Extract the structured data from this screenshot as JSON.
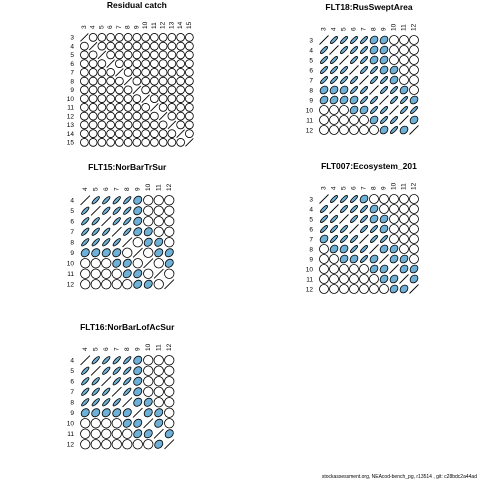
{
  "footer": "stockassessment.org, NEAcod-bench_pg, r13514 , git: c28bdc2a44ad",
  "colors": {
    "fill": "#6fb0d6",
    "stroke": "#000000"
  },
  "chart_data": [
    {
      "type": "correlation-ellipse-matrix",
      "title": "Residual catch",
      "ages": [
        3,
        4,
        5,
        6,
        7,
        8,
        9,
        10,
        11,
        12,
        13,
        14,
        15
      ],
      "strong": [],
      "weak": []
    },
    {
      "type": "correlation-ellipse-matrix",
      "title": "FLT18:RusSweptArea",
      "ages": [
        3,
        4,
        5,
        6,
        7,
        8,
        9,
        10,
        11,
        12
      ],
      "strong": [
        [
          3,
          4
        ],
        [
          3,
          5
        ],
        [
          3,
          6
        ],
        [
          3,
          7
        ],
        [
          4,
          5
        ],
        [
          4,
          6
        ],
        [
          4,
          7
        ],
        [
          5,
          6
        ],
        [
          5,
          7
        ],
        [
          6,
          7
        ],
        [
          6,
          8
        ],
        [
          7,
          8
        ],
        [
          7,
          9
        ],
        [
          8,
          9
        ],
        [
          8,
          10
        ],
        [
          9,
          10
        ],
        [
          9,
          11
        ],
        [
          10,
          11
        ],
        [
          10,
          12
        ]
      ],
      "weak": [
        [
          3,
          8
        ],
        [
          3,
          9
        ],
        [
          4,
          8
        ],
        [
          4,
          9
        ],
        [
          5,
          8
        ],
        [
          5,
          9
        ],
        [
          6,
          9
        ],
        [
          6,
          10
        ],
        [
          7,
          10
        ],
        [
          8,
          11
        ],
        [
          9,
          12
        ],
        [
          11,
          12
        ]
      ]
    },
    {
      "type": "correlation-ellipse-matrix",
      "title": "FLT15:NorBarTrSur",
      "ages": [
        4,
        5,
        6,
        7,
        8,
        9,
        10,
        11,
        12
      ],
      "strong": [
        [
          4,
          5
        ],
        [
          4,
          6
        ],
        [
          4,
          7
        ],
        [
          4,
          8
        ],
        [
          5,
          6
        ],
        [
          5,
          7
        ],
        [
          5,
          8
        ],
        [
          6,
          7
        ],
        [
          6,
          8
        ],
        [
          7,
          8
        ]
      ],
      "weak": [
        [
          4,
          9
        ],
        [
          5,
          9
        ],
        [
          6,
          9
        ],
        [
          7,
          9
        ],
        [
          7,
          10
        ],
        [
          8,
          10
        ],
        [
          8,
          11
        ],
        [
          9,
          11
        ],
        [
          9,
          12
        ],
        [
          10,
          12
        ]
      ]
    },
    {
      "type": "correlation-ellipse-matrix",
      "title": "FLT007:Ecosystem_201",
      "ages": [
        3,
        4,
        5,
        6,
        7,
        8,
        9,
        10,
        11,
        12
      ],
      "strong": [
        [
          3,
          4
        ],
        [
          3,
          5
        ],
        [
          3,
          6
        ],
        [
          4,
          5
        ],
        [
          4,
          6
        ],
        [
          4,
          7
        ],
        [
          5,
          6
        ],
        [
          5,
          7
        ],
        [
          6,
          7
        ],
        [
          6,
          8
        ],
        [
          7,
          8
        ],
        [
          7,
          9
        ]
      ],
      "weak": [
        [
          3,
          7
        ],
        [
          4,
          8
        ],
        [
          5,
          8
        ],
        [
          5,
          9
        ],
        [
          6,
          9
        ],
        [
          8,
          9
        ],
        [
          8,
          10
        ],
        [
          9,
          10
        ],
        [
          9,
          11
        ],
        [
          10,
          11
        ],
        [
          10,
          12
        ],
        [
          11,
          12
        ]
      ]
    },
    {
      "type": "correlation-ellipse-matrix",
      "title": "FLT16:NorBarLofAcSur",
      "ages": [
        4,
        5,
        6,
        7,
        8,
        9,
        10,
        11,
        12
      ],
      "strong": [
        [
          4,
          5
        ],
        [
          4,
          6
        ],
        [
          4,
          7
        ],
        [
          4,
          8
        ],
        [
          5,
          6
        ],
        [
          5,
          7
        ],
        [
          5,
          8
        ],
        [
          6,
          7
        ],
        [
          6,
          8
        ],
        [
          7,
          8
        ]
      ],
      "weak": [
        [
          4,
          9
        ],
        [
          5,
          9
        ],
        [
          6,
          9
        ],
        [
          7,
          9
        ],
        [
          8,
          9
        ],
        [
          8,
          10
        ],
        [
          9,
          10
        ],
        [
          9,
          11
        ],
        [
          10,
          11
        ],
        [
          11,
          12
        ]
      ]
    }
  ]
}
